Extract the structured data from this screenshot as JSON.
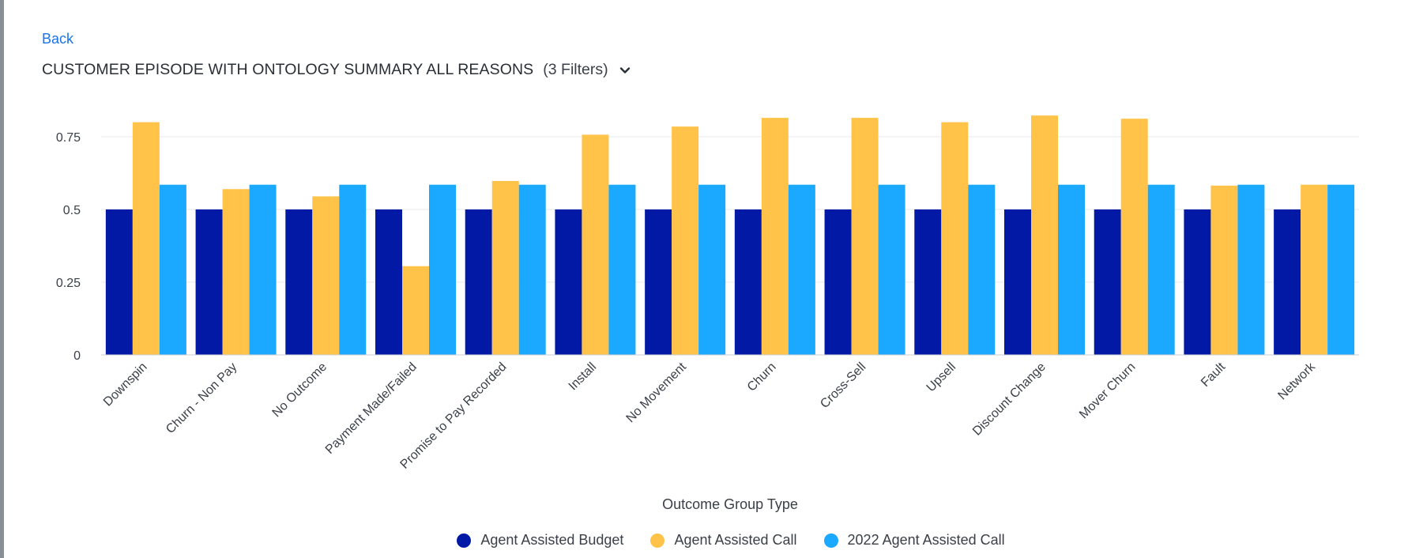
{
  "nav": {
    "back_label": "Back"
  },
  "header": {
    "title": "CUSTOMER EPISODE WITH ONTOLOGY SUMMARY ALL REASONS",
    "filters": "(3 Filters)"
  },
  "colors": {
    "series": [
      "#0219a6",
      "#ffc34a",
      "#1aa9ff"
    ],
    "link": "#1a73e8",
    "grid": "#e6e8eb"
  },
  "chart_data": {
    "type": "bar",
    "xlabel": "Outcome Group Type",
    "ylabel": "",
    "ylim": [
      0,
      0.875
    ],
    "yticks": [
      0,
      0.25,
      0.5,
      0.75
    ],
    "ytick_labels": [
      "0",
      "0.25",
      "0.5",
      "0.75"
    ],
    "grid": true,
    "legend_position": "bottom-center",
    "categories": [
      "Downspin",
      "Churn - Non Pay",
      "No Outcome",
      "Payment Made/Failed",
      "Promise to Pay Recorded",
      "Install",
      "No Movement",
      "Churn",
      "Cross-Sell",
      "Upsell",
      "Discount Change",
      "Mover Churn",
      "Fault",
      "Network"
    ],
    "series": [
      {
        "name": "Agent Assisted Budget",
        "values": [
          0.5,
          0.5,
          0.5,
          0.5,
          0.5,
          0.5,
          0.5,
          0.5,
          0.5,
          0.5,
          0.5,
          0.5,
          0.5,
          0.5
        ]
      },
      {
        "name": "Agent Assisted Call",
        "values": [
          0.8,
          0.57,
          0.545,
          0.305,
          0.598,
          0.757,
          0.785,
          0.815,
          0.815,
          0.8,
          0.823,
          0.812,
          0.582,
          0.585
        ]
      },
      {
        "name": "2022 Agent Assisted Call",
        "values": [
          0.585,
          0.585,
          0.585,
          0.585,
          0.585,
          0.585,
          0.585,
          0.585,
          0.585,
          0.585,
          0.585,
          0.585,
          0.585,
          0.585
        ]
      }
    ]
  }
}
